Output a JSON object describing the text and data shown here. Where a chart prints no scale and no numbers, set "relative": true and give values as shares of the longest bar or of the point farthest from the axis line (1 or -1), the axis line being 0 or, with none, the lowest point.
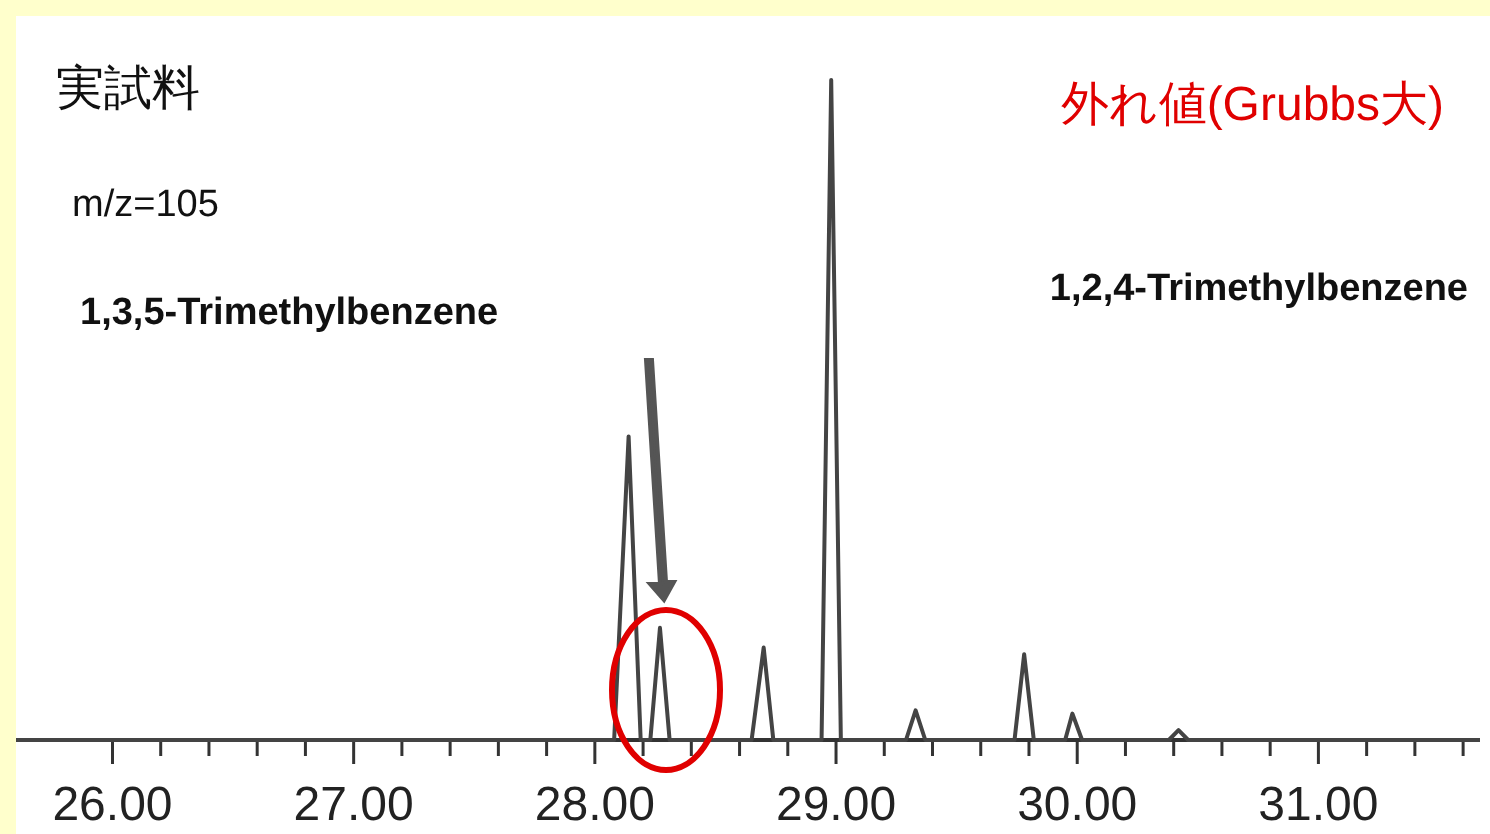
{
  "chart_data": {
    "type": "line",
    "relative": true,
    "title": "実試料",
    "subtitle": "m/z=105",
    "annotations": [
      "1,3,5-Trimethylbenzene",
      "1,2,4-Trimethylbenzene",
      "外れ値(Grubbs大)"
    ],
    "xlim": [
      25.6,
      31.67
    ],
    "xticks": [
      {
        "value": 26,
        "label": "26.00"
      },
      {
        "value": 26.2,
        "label": null
      },
      {
        "value": 26.4,
        "label": null
      },
      {
        "value": 26.6,
        "label": null
      },
      {
        "value": 26.8,
        "label": null
      },
      {
        "value": 27,
        "label": "27.00"
      },
      {
        "value": 27.2,
        "label": null
      },
      {
        "value": 27.4,
        "label": null
      },
      {
        "value": 27.6,
        "label": null
      },
      {
        "value": 27.8,
        "label": null
      },
      {
        "value": 28,
        "label": "28.00"
      },
      {
        "value": 28.2,
        "label": null
      },
      {
        "value": 28.4,
        "label": null
      },
      {
        "value": 28.6,
        "label": null
      },
      {
        "value": 28.8,
        "label": null
      },
      {
        "value": 29,
        "label": "29.00"
      },
      {
        "value": 29.2,
        "label": null
      },
      {
        "value": 29.4,
        "label": null
      },
      {
        "value": 29.6,
        "label": null
      },
      {
        "value": 29.8,
        "label": null
      },
      {
        "value": 30,
        "label": "30.00"
      },
      {
        "value": 30.2,
        "label": null
      },
      {
        "value": 30.4,
        "label": null
      },
      {
        "value": 30.6,
        "label": null
      },
      {
        "value": 30.8,
        "label": null
      },
      {
        "value": 31,
        "label": "31.00"
      },
      {
        "value": 31.2,
        "label": null
      },
      {
        "value": 31.4,
        "label": null
      },
      {
        "value": 31.6,
        "label": null
      }
    ],
    "series": [
      {
        "color": "#444444",
        "x": [
          25.6,
          28.08,
          28.14,
          28.19,
          28.23,
          28.27,
          28.31,
          28.65,
          28.7,
          28.74,
          28.94,
          28.98,
          29.02,
          29.29,
          29.33,
          29.37,
          29.74,
          29.78,
          29.82,
          29.95,
          29.98,
          30.02,
          30.38,
          30.42,
          30.46,
          31.67
        ],
        "values": [
          0,
          0,
          0.46,
          0,
          0,
          0.17,
          0,
          0,
          0.14,
          0,
          0,
          1,
          0,
          0,
          0.045,
          0,
          0,
          0.13,
          0,
          0,
          0.04,
          0,
          0,
          0.015,
          0,
          0
        ]
      }
    ]
  }
}
